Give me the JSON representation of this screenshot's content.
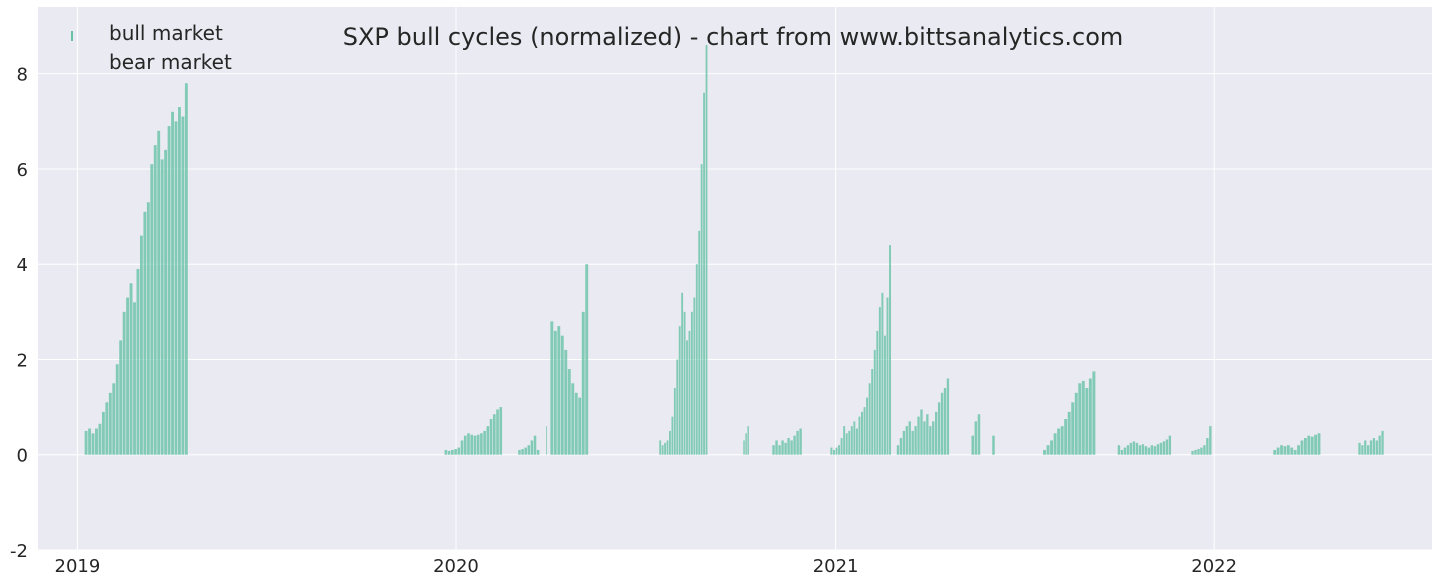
{
  "chart_data": {
    "type": "bar",
    "title": "SXP bull cycles (normalized)  - chart from www.bittsanalytics.com",
    "xlabel": "",
    "ylabel": "",
    "ylim": [
      -2,
      9.4
    ],
    "xlim": [
      "2018-11-24",
      "2022-07-30"
    ],
    "y_ticks": [
      -2,
      0,
      2,
      4,
      6,
      8
    ],
    "x_ticks": [
      {
        "date": "2019-01-01",
        "label": "2019"
      },
      {
        "date": "2020-01-01",
        "label": "2020"
      },
      {
        "date": "2021-01-01",
        "label": "2021"
      },
      {
        "date": "2022-01-01",
        "label": "2022"
      }
    ],
    "grid": true,
    "legend": {
      "placement": "top-left",
      "entries": [
        {
          "label": "bull market",
          "color": "#66c2a5"
        },
        {
          "label": "bear market",
          "color": "#66c2a5"
        }
      ]
    },
    "colors": {
      "bull": "#66c2a5",
      "background": "#eaeaf2",
      "grid": "#ffffff"
    },
    "series": [
      {
        "bull_runs": [
          {
            "start": "2019-01-08",
            "end": "2019-04-18",
            "values": [
              0.5,
              0.55,
              0.45,
              0.55,
              0.65,
              0.9,
              1.1,
              1.3,
              1.5,
              1.9,
              2.4,
              3.0,
              3.3,
              3.6,
              3.2,
              3.9,
              4.6,
              5.1,
              5.3,
              6.1,
              6.5,
              6.8,
              6.2,
              6.4,
              6.9,
              7.2,
              7.0,
              7.3,
              7.1,
              7.8
            ]
          },
          {
            "start": "2019-12-21",
            "end": "2020-02-15",
            "values": [
              0.1,
              0.08,
              0.1,
              0.12,
              0.15,
              0.3,
              0.4,
              0.45,
              0.42,
              0.4,
              0.42,
              0.45,
              0.5,
              0.6,
              0.75,
              0.85,
              0.95,
              1.0
            ]
          },
          {
            "start": "2020-03-01",
            "end": "2020-03-22",
            "values": [
              0.1,
              0.12,
              0.15,
              0.2,
              0.3,
              0.4,
              0.1
            ]
          },
          {
            "start": "2020-03-28",
            "end": "2020-03-29",
            "values": [
              0.6
            ]
          },
          {
            "start": "2020-04-01",
            "end": "2020-05-08",
            "values": [
              2.8,
              2.6,
              2.7,
              2.5,
              2.2,
              1.8,
              1.5,
              1.3,
              1.2,
              3.0,
              4.0
            ]
          },
          {
            "start": "2020-07-15",
            "end": "2020-08-31",
            "values": [
              0.3,
              0.2,
              0.25,
              0.3,
              0.5,
              0.8,
              1.4,
              2.0,
              2.7,
              3.4,
              3.0,
              2.4,
              2.6,
              3.0,
              3.3,
              4.0,
              4.7,
              6.1,
              7.6,
              8.6
            ]
          },
          {
            "start": "2020-10-04",
            "end": "2020-10-10",
            "values": [
              0.3,
              0.45,
              0.6
            ]
          },
          {
            "start": "2020-11-01",
            "end": "2020-11-30",
            "values": [
              0.2,
              0.3,
              0.2,
              0.3,
              0.25,
              0.35,
              0.3,
              0.4,
              0.5,
              0.55
            ]
          },
          {
            "start": "2020-12-27",
            "end": "2021-02-24",
            "values": [
              0.15,
              0.1,
              0.15,
              0.2,
              0.35,
              0.6,
              0.45,
              0.5,
              0.6,
              0.7,
              0.55,
              0.8,
              0.9,
              1.0,
              1.2,
              1.5,
              1.8,
              2.2,
              2.6,
              3.1,
              3.4,
              2.5,
              3.3,
              4.4
            ]
          },
          {
            "start": "2021-03-01",
            "end": "2021-04-21",
            "values": [
              0.2,
              0.35,
              0.5,
              0.6,
              0.7,
              0.5,
              0.6,
              0.8,
              0.95,
              0.7,
              0.85,
              0.6,
              0.7,
              0.9,
              1.1,
              1.3,
              1.4,
              1.6
            ]
          },
          {
            "start": "2021-05-12",
            "end": "2021-05-21",
            "values": [
              0.4,
              0.7,
              0.85
            ]
          },
          {
            "start": "2021-06-01",
            "end": "2021-06-04",
            "values": [
              0.4
            ]
          },
          {
            "start": "2021-07-20",
            "end": "2021-09-09",
            "values": [
              0.1,
              0.2,
              0.3,
              0.45,
              0.55,
              0.6,
              0.75,
              0.9,
              1.1,
              1.3,
              1.5,
              1.55,
              1.4,
              1.6,
              1.75
            ]
          },
          {
            "start": "2021-09-30",
            "end": "2021-11-21",
            "values": [
              0.2,
              0.1,
              0.15,
              0.2,
              0.25,
              0.28,
              0.25,
              0.2,
              0.22,
              0.18,
              0.15,
              0.2,
              0.18,
              0.22,
              0.25,
              0.28,
              0.32,
              0.4
            ]
          },
          {
            "start": "2021-12-10",
            "end": "2021-12-30",
            "values": [
              0.08,
              0.1,
              0.12,
              0.15,
              0.2,
              0.35,
              0.6
            ]
          },
          {
            "start": "2022-02-27",
            "end": "2022-04-14",
            "values": [
              0.1,
              0.15,
              0.2,
              0.18,
              0.2,
              0.15,
              0.1,
              0.2,
              0.3,
              0.35,
              0.4,
              0.38,
              0.42,
              0.45
            ]
          },
          {
            "start": "2022-05-20",
            "end": "2022-06-14",
            "values": [
              0.25,
              0.2,
              0.3,
              0.2,
              0.3,
              0.35,
              0.3,
              0.4,
              0.5
            ]
          }
        ]
      }
    ]
  }
}
